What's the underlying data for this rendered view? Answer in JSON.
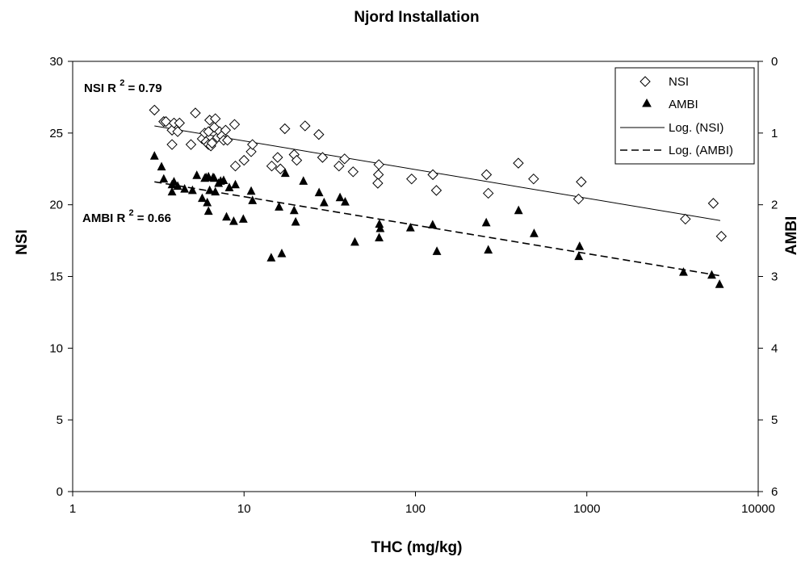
{
  "chart_data": {
    "type": "scatter",
    "title": "Njord Installation",
    "xlabel": "THC (mg/kg)",
    "ylabel": "NSI",
    "y2label": "AMBI",
    "x_scale": "log",
    "xlim": [
      1,
      10000
    ],
    "ylim": [
      0,
      30
    ],
    "y2lim": [
      6,
      0
    ],
    "x_ticks": [
      "1",
      "10",
      "100",
      "1000",
      "10000"
    ],
    "y_ticks": [
      "0",
      "5",
      "10",
      "15",
      "20",
      "25",
      "30"
    ],
    "y2_ticks": [
      "6",
      "5",
      "4",
      "3",
      "2",
      "1",
      "0"
    ],
    "grid": false,
    "legend_position": "top-right",
    "annotations": [
      {
        "id": "nsi",
        "prefix": "NSI R",
        "sup": "2",
        "suffix": " = 0.79"
      },
      {
        "id": "ambi",
        "prefix": "AMBI R",
        "sup": "2",
        "suffix": " = 0.66"
      }
    ],
    "legend": [
      "NSI",
      "AMBI",
      "Log. (NSI)",
      "Log. (AMBI)"
    ],
    "series": [
      {
        "name": "NSI",
        "marker": "open-diamond",
        "axis": "left",
        "points": [
          [
            3.0,
            26.6
          ],
          [
            3.4,
            25.8
          ],
          [
            3.5,
            25.8
          ],
          [
            3.8,
            25.2
          ],
          [
            3.9,
            25.7
          ],
          [
            3.8,
            24.2
          ],
          [
            4.2,
            25.7
          ],
          [
            4.1,
            25.1
          ],
          [
            4.9,
            24.2
          ],
          [
            5.2,
            26.4
          ],
          [
            5.7,
            24.6
          ],
          [
            5.9,
            25.0
          ],
          [
            6.0,
            24.4
          ],
          [
            6.2,
            25.1
          ],
          [
            6.3,
            25.9
          ],
          [
            6.2,
            24.2
          ],
          [
            6.4,
            24.1
          ],
          [
            6.5,
            24.3
          ],
          [
            6.7,
            25.4
          ],
          [
            6.8,
            26.0
          ],
          [
            7.0,
            24.7
          ],
          [
            7.2,
            25.1
          ],
          [
            7.4,
            24.8
          ],
          [
            7.6,
            24.5
          ],
          [
            7.8,
            25.2
          ],
          [
            8.0,
            24.5
          ],
          [
            8.8,
            25.6
          ],
          [
            8.9,
            22.7
          ],
          [
            10.0,
            23.1
          ],
          [
            11.0,
            23.7
          ],
          [
            11.2,
            24.2
          ],
          [
            14.5,
            22.7
          ],
          [
            15.7,
            23.3
          ],
          [
            16.3,
            22.5
          ],
          [
            17.3,
            25.3
          ],
          [
            19.6,
            23.5
          ],
          [
            20.3,
            23.1
          ],
          [
            22.7,
            25.5
          ],
          [
            27.3,
            24.9
          ],
          [
            28.7,
            23.3
          ],
          [
            35.8,
            22.7
          ],
          [
            38.6,
            23.2
          ],
          [
            43.3,
            22.3
          ],
          [
            61.2,
            22.8
          ],
          [
            60.8,
            22.1
          ],
          [
            60.3,
            21.5
          ],
          [
            95.0,
            21.8
          ],
          [
            126.4,
            22.1
          ],
          [
            132.5,
            21.0
          ],
          [
            259.7,
            22.1
          ],
          [
            266.1,
            20.8
          ],
          [
            398.5,
            22.9
          ],
          [
            489.1,
            21.8
          ],
          [
            894.9,
            20.4
          ],
          [
            928.1,
            21.6
          ],
          [
            3760.5,
            19.0
          ],
          [
            5471.3,
            20.1
          ],
          [
            6092.8,
            17.8
          ]
        ]
      },
      {
        "name": "AMBI",
        "marker": "filled-triangle",
        "axis": "right",
        "points": [
          [
            3.0,
            1.32
          ],
          [
            3.3,
            1.47
          ],
          [
            3.4,
            1.64
          ],
          [
            3.8,
            1.72
          ],
          [
            3.8,
            1.82
          ],
          [
            4.1,
            1.74
          ],
          [
            3.9,
            1.68
          ],
          [
            4.5,
            1.78
          ],
          [
            5.0,
            1.8
          ],
          [
            5.3,
            1.59
          ],
          [
            5.7,
            1.91
          ],
          [
            5.9,
            1.63
          ],
          [
            6.0,
            1.62
          ],
          [
            6.2,
            1.61
          ],
          [
            6.1,
            1.97
          ],
          [
            6.2,
            2.09
          ],
          [
            6.3,
            1.8
          ],
          [
            6.6,
            1.62
          ],
          [
            6.7,
            1.63
          ],
          [
            6.8,
            1.82
          ],
          [
            7.1,
            1.7
          ],
          [
            7.3,
            1.67
          ],
          [
            7.6,
            1.66
          ],
          [
            7.9,
            2.17
          ],
          [
            8.2,
            1.76
          ],
          [
            8.7,
            2.23
          ],
          [
            8.9,
            1.72
          ],
          [
            9.9,
            2.2
          ],
          [
            11.0,
            1.81
          ],
          [
            11.2,
            1.94
          ],
          [
            14.4,
            2.74
          ],
          [
            16.0,
            2.03
          ],
          [
            16.6,
            2.68
          ],
          [
            17.4,
            1.56
          ],
          [
            19.6,
            2.08
          ],
          [
            20.0,
            2.24
          ],
          [
            22.2,
            1.67
          ],
          [
            27.4,
            1.83
          ],
          [
            29.3,
            1.97
          ],
          [
            36.3,
            1.9
          ],
          [
            38.9,
            1.96
          ],
          [
            44.3,
            2.52
          ],
          [
            61.6,
            2.27
          ],
          [
            62.3,
            2.33
          ],
          [
            61.4,
            2.46
          ],
          [
            93.5,
            2.32
          ],
          [
            126.0,
            2.28
          ],
          [
            133.4,
            2.65
          ],
          [
            258.9,
            2.25
          ],
          [
            266.1,
            2.63
          ],
          [
            399.7,
            2.08
          ],
          [
            492.3,
            2.4
          ],
          [
            897.1,
            2.72
          ],
          [
            907.8,
            2.58
          ],
          [
            3664.1,
            2.94
          ],
          [
            5356.9,
            2.98
          ],
          [
            5948.6,
            3.11
          ]
        ]
      },
      {
        "name": "Log. (NSI)",
        "type": "trendline",
        "style": "solid",
        "axis": "left",
        "from": [
          3.0,
          25.5
        ],
        "to": [
          6000,
          18.9
        ]
      },
      {
        "name": "Log. (AMBI)",
        "type": "trendline",
        "style": "dashed",
        "axis": "right",
        "from": [
          3.0,
          1.68
        ],
        "to": [
          6000,
          2.99
        ]
      }
    ]
  }
}
